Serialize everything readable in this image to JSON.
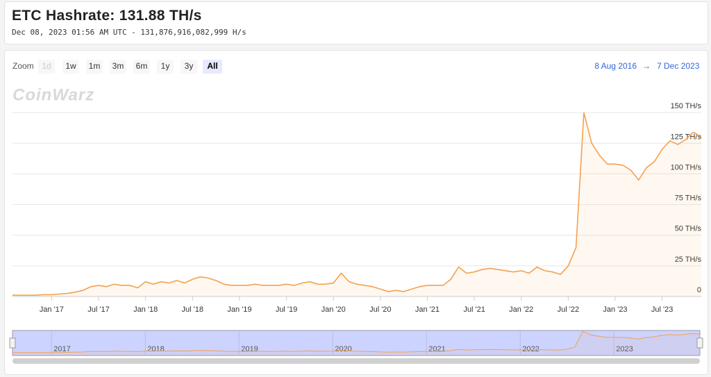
{
  "header": {
    "title": "ETC Hashrate: 131.88 TH/s",
    "subtitle": "Dec 08, 2023 01:56 AM UTC - 131,876,916,082,999 H/s"
  },
  "controls": {
    "zoom_label": "Zoom",
    "buttons": [
      "1d",
      "1w",
      "1m",
      "3m",
      "6m",
      "1y",
      "3y",
      "All"
    ],
    "range_from": "8 Aug 2016",
    "range_arrow": "→",
    "range_to": "7 Dec 2023"
  },
  "watermark": "CoinWarz",
  "chart_data": {
    "type": "line",
    "x": [
      "2016-08",
      "2016-09",
      "2016-10",
      "2016-11",
      "2016-12",
      "2017-01",
      "2017-02",
      "2017-03",
      "2017-04",
      "2017-05",
      "2017-06",
      "2017-07",
      "2017-08",
      "2017-09",
      "2017-10",
      "2017-11",
      "2017-12",
      "2018-01",
      "2018-02",
      "2018-03",
      "2018-04",
      "2018-05",
      "2018-06",
      "2018-07",
      "2018-08",
      "2018-09",
      "2018-10",
      "2018-11",
      "2018-12",
      "2019-01",
      "2019-02",
      "2019-03",
      "2019-04",
      "2019-05",
      "2019-06",
      "2019-07",
      "2019-08",
      "2019-09",
      "2019-10",
      "2019-11",
      "2019-12",
      "2020-01",
      "2020-02",
      "2020-03",
      "2020-04",
      "2020-05",
      "2020-06",
      "2020-07",
      "2020-08",
      "2020-09",
      "2020-10",
      "2020-11",
      "2020-12",
      "2021-01",
      "2021-02",
      "2021-03",
      "2021-04",
      "2021-05",
      "2021-06",
      "2021-07",
      "2021-08",
      "2021-09",
      "2021-10",
      "2021-11",
      "2021-12",
      "2022-01",
      "2022-02",
      "2022-03",
      "2022-04",
      "2022-05",
      "2022-06",
      "2022-07",
      "2022-08",
      "2022-09",
      "2022-10",
      "2022-11",
      "2022-12",
      "2023-01",
      "2023-02",
      "2023-03",
      "2023-04",
      "2023-05",
      "2023-06",
      "2023-07",
      "2023-08",
      "2023-09",
      "2023-10",
      "2023-11",
      "2023-12"
    ],
    "series": [
      {
        "name": "Hashrate",
        "color": "#f5a04e",
        "values": [
          1,
          1,
          1,
          1,
          1.5,
          1.5,
          2,
          2.5,
          3.5,
          5,
          8,
          9,
          8,
          10,
          9,
          9,
          7,
          12,
          10,
          12,
          11,
          13,
          11,
          14,
          16,
          15,
          13,
          10,
          9,
          9,
          9,
          10,
          9,
          9,
          9,
          10,
          9,
          11,
          12,
          10,
          10,
          11,
          19,
          12,
          10,
          9,
          8,
          6,
          4,
          5,
          4,
          6,
          8,
          9,
          9,
          9,
          14,
          24,
          19,
          20,
          22,
          23,
          22,
          21,
          20,
          21,
          19,
          24,
          21,
          20,
          18,
          25,
          40,
          150,
          125,
          115,
          108,
          108,
          107,
          103,
          95,
          105,
          110,
          120,
          127,
          124,
          128,
          134,
          130
        ]
      }
    ],
    "ylim": [
      0,
      175
    ],
    "yticks": [
      0,
      {
        "value": 25,
        "label": "25 TH/s"
      },
      {
        "value": 50,
        "label": "50 TH/s"
      },
      {
        "value": 75,
        "label": "75 TH/s"
      },
      {
        "value": 100,
        "label": "100 TH/s"
      },
      {
        "value": 125,
        "label": "125 TH/s"
      },
      {
        "value": 150,
        "label": "150 TH/s"
      }
    ],
    "xlim": [
      "2016-08",
      "2023-12"
    ],
    "xticks": [
      {
        "value": "2017-01",
        "label": "Jan '17"
      },
      {
        "value": "2017-07",
        "label": "Jul '17"
      },
      {
        "value": "2018-01",
        "label": "Jan '18"
      },
      {
        "value": "2018-07",
        "label": "Jul '18"
      },
      {
        "value": "2019-01",
        "label": "Jan '19"
      },
      {
        "value": "2019-07",
        "label": "Jul '19"
      },
      {
        "value": "2020-01",
        "label": "Jan '20"
      },
      {
        "value": "2020-07",
        "label": "Jul '20"
      },
      {
        "value": "2021-01",
        "label": "Jan '21"
      },
      {
        "value": "2021-07",
        "label": "Jul '21"
      },
      {
        "value": "2022-01",
        "label": "Jan '22"
      },
      {
        "value": "2022-07",
        "label": "Jul '22"
      },
      {
        "value": "2023-01",
        "label": "Jan '23"
      },
      {
        "value": "2023-07",
        "label": "Jul '23"
      }
    ],
    "navigator_ticks": [
      {
        "value": "2017-01",
        "label": "2017"
      },
      {
        "value": "2018-01",
        "label": "2018"
      },
      {
        "value": "2019-01",
        "label": "2019"
      },
      {
        "value": "2020-01",
        "label": "2020"
      },
      {
        "value": "2021-01",
        "label": "2021"
      },
      {
        "value": "2022-01",
        "label": "2022"
      },
      {
        "value": "2023-01",
        "label": "2023"
      }
    ],
    "grid": true
  }
}
